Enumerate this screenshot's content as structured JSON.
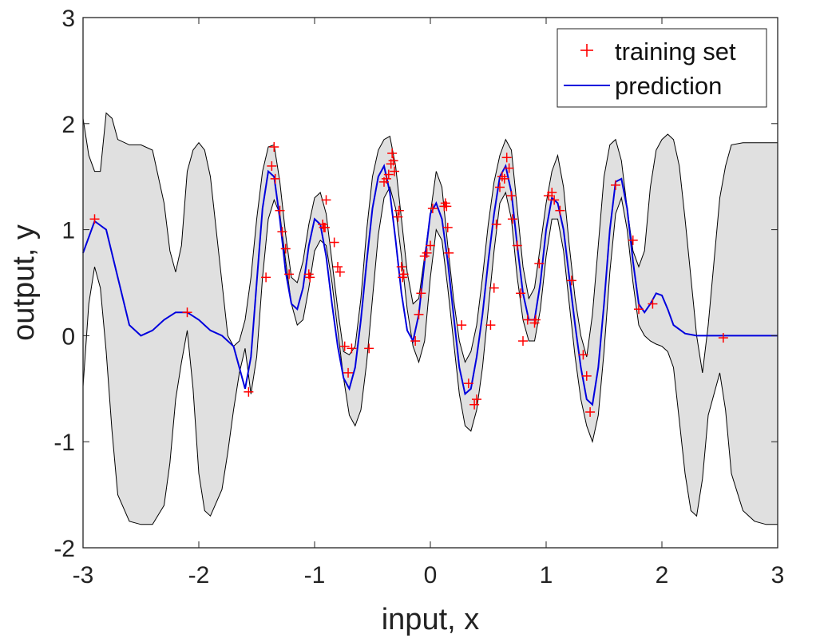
{
  "chart_data": {
    "type": "line",
    "xlabel": "input, x",
    "ylabel": "output, y",
    "xlim": [
      -3,
      3
    ],
    "ylim": [
      -2,
      3
    ],
    "xticks": [
      -3,
      -2,
      -1,
      0,
      1,
      2,
      3
    ],
    "xtick_labels": [
      "-3",
      "-2",
      "-1",
      "0",
      "1",
      "2",
      "3"
    ],
    "yticks": [
      -2,
      -1,
      0,
      1,
      2,
      3
    ],
    "ytick_labels": [
      "-2",
      "-1",
      "0",
      "1",
      "2",
      "3"
    ],
    "grid": false,
    "legend_position": "top-right",
    "legend": [
      {
        "label": "training set",
        "marker": "plus",
        "color": "#ff0000"
      },
      {
        "label": "prediction",
        "marker": "line",
        "color": "#0000dd"
      }
    ],
    "band_color": "#e0e0e0",
    "band_edge_color": "#000000",
    "series": [
      {
        "name": "prediction",
        "role": "mean",
        "color": "#0000dd",
        "x": [
          -3.0,
          -2.9,
          -2.8,
          -2.7,
          -2.6,
          -2.5,
          -2.4,
          -2.3,
          -2.2,
          -2.1,
          -2.0,
          -1.9,
          -1.8,
          -1.7,
          -1.6,
          -1.55,
          -1.5,
          -1.45,
          -1.4,
          -1.35,
          -1.3,
          -1.25,
          -1.2,
          -1.15,
          -1.1,
          -1.05,
          -1.0,
          -0.95,
          -0.9,
          -0.85,
          -0.8,
          -0.75,
          -0.7,
          -0.65,
          -0.6,
          -0.55,
          -0.5,
          -0.45,
          -0.4,
          -0.35,
          -0.3,
          -0.25,
          -0.2,
          -0.15,
          -0.1,
          -0.05,
          0.0,
          0.05,
          0.1,
          0.15,
          0.2,
          0.25,
          0.3,
          0.35,
          0.4,
          0.45,
          0.5,
          0.55,
          0.6,
          0.65,
          0.7,
          0.75,
          0.8,
          0.85,
          0.9,
          0.95,
          1.0,
          1.05,
          1.1,
          1.15,
          1.2,
          1.25,
          1.3,
          1.35,
          1.4,
          1.45,
          1.5,
          1.55,
          1.6,
          1.65,
          1.7,
          1.75,
          1.8,
          1.85,
          1.9,
          1.95,
          2.0,
          2.05,
          2.1,
          2.2,
          2.3,
          2.4,
          2.5,
          2.6,
          2.8,
          3.0
        ],
        "y": [
          0.78,
          1.08,
          1.0,
          0.55,
          0.1,
          0.0,
          0.05,
          0.15,
          0.22,
          0.22,
          0.15,
          0.05,
          0.0,
          -0.1,
          -0.5,
          -0.2,
          0.5,
          1.2,
          1.55,
          1.5,
          1.1,
          0.6,
          0.3,
          0.25,
          0.45,
          0.85,
          1.1,
          1.05,
          0.75,
          0.3,
          -0.1,
          -0.4,
          -0.5,
          -0.3,
          0.15,
          0.7,
          1.2,
          1.5,
          1.6,
          1.35,
          0.9,
          0.4,
          0.05,
          -0.05,
          0.2,
          0.7,
          1.15,
          1.25,
          1.1,
          0.7,
          0.2,
          -0.3,
          -0.55,
          -0.5,
          -0.2,
          0.2,
          0.7,
          1.15,
          1.5,
          1.6,
          1.35,
          0.85,
          0.4,
          0.15,
          0.15,
          0.5,
          1.0,
          1.3,
          1.25,
          1.0,
          0.55,
          0.1,
          -0.3,
          -0.6,
          -0.65,
          -0.3,
          0.3,
          1.0,
          1.45,
          1.48,
          1.2,
          0.7,
          0.3,
          0.22,
          0.3,
          0.4,
          0.38,
          0.25,
          0.1,
          0.02,
          0.0,
          0.0,
          0.0,
          0.0,
          0.0,
          0.0
        ]
      },
      {
        "name": "training set",
        "role": "points",
        "color": "#ff0000",
        "x": [
          -2.9,
          -2.1,
          -1.57,
          -1.42,
          -1.37,
          -1.35,
          -1.34,
          -1.3,
          -1.28,
          -1.25,
          -1.22,
          -1.05,
          -1.04,
          -0.93,
          -0.92,
          -0.91,
          -0.9,
          -0.83,
          -0.8,
          -0.78,
          -0.74,
          -0.71,
          -0.68,
          -0.53,
          -0.4,
          -0.38,
          -0.36,
          -0.34,
          -0.33,
          -0.32,
          -0.31,
          -0.28,
          -0.27,
          -0.25,
          -0.24,
          -0.23,
          -0.13,
          -0.1,
          -0.08,
          -0.05,
          -0.03,
          0.0,
          0.02,
          0.12,
          0.13,
          0.14,
          0.15,
          0.16,
          0.27,
          0.33,
          0.38,
          0.4,
          0.52,
          0.55,
          0.57,
          0.6,
          0.62,
          0.64,
          0.66,
          0.68,
          0.7,
          0.71,
          0.75,
          0.78,
          0.8,
          0.84,
          0.9,
          0.91,
          0.94,
          1.02,
          1.05,
          1.07,
          1.12,
          1.22,
          1.32,
          1.35,
          1.38,
          1.6,
          1.75,
          1.8,
          1.92,
          2.53
        ],
        "y": [
          1.1,
          0.22,
          -0.53,
          0.55,
          1.6,
          1.78,
          1.48,
          1.18,
          0.98,
          0.82,
          0.58,
          0.58,
          0.55,
          1.05,
          1.02,
          1.02,
          1.28,
          0.88,
          0.65,
          0.6,
          -0.1,
          -0.35,
          -0.12,
          -0.12,
          1.45,
          1.48,
          1.52,
          1.62,
          1.72,
          1.65,
          1.55,
          1.12,
          1.18,
          0.65,
          0.55,
          0.58,
          -0.05,
          0.2,
          0.4,
          0.75,
          0.78,
          0.85,
          1.2,
          1.22,
          1.25,
          1.22,
          1.02,
          0.78,
          0.1,
          -0.45,
          -0.65,
          -0.6,
          0.1,
          0.45,
          1.05,
          1.4,
          1.5,
          1.48,
          1.68,
          1.58,
          1.32,
          1.1,
          0.85,
          0.4,
          -0.05,
          0.15,
          0.12,
          0.15,
          0.68,
          1.32,
          1.35,
          1.28,
          1.18,
          0.52,
          -0.18,
          -0.38,
          -0.72,
          1.42,
          0.9,
          0.25,
          0.3,
          -0.02
        ]
      },
      {
        "name": "",
        "role": "upper-bound",
        "x": [
          -3.0,
          -2.95,
          -2.9,
          -2.85,
          -2.8,
          -2.75,
          -2.7,
          -2.6,
          -2.5,
          -2.4,
          -2.3,
          -2.25,
          -2.2,
          -2.15,
          -2.1,
          -2.05,
          -2.0,
          -1.95,
          -1.9,
          -1.8,
          -1.75,
          -1.7,
          -1.65,
          -1.6,
          -1.55,
          -1.5,
          -1.45,
          -1.4,
          -1.35,
          -1.3,
          -1.25,
          -1.2,
          -1.15,
          -1.1,
          -1.05,
          -1.0,
          -0.95,
          -0.9,
          -0.85,
          -0.8,
          -0.75,
          -0.7,
          -0.65,
          -0.6,
          -0.55,
          -0.5,
          -0.45,
          -0.4,
          -0.35,
          -0.3,
          -0.25,
          -0.2,
          -0.15,
          -0.1,
          -0.05,
          0.0,
          0.05,
          0.1,
          0.15,
          0.2,
          0.25,
          0.3,
          0.35,
          0.4,
          0.45,
          0.5,
          0.55,
          0.6,
          0.65,
          0.7,
          0.75,
          0.8,
          0.85,
          0.9,
          0.95,
          1.0,
          1.05,
          1.1,
          1.15,
          1.2,
          1.25,
          1.3,
          1.35,
          1.4,
          1.45,
          1.5,
          1.55,
          1.6,
          1.65,
          1.7,
          1.75,
          1.8,
          1.85,
          1.9,
          1.95,
          2.0,
          2.05,
          2.1,
          2.15,
          2.2,
          2.25,
          2.3,
          2.35,
          2.4,
          2.5,
          2.55,
          2.6,
          2.7,
          2.8,
          2.9,
          3.0
        ],
        "y": [
          2.05,
          1.7,
          1.55,
          1.55,
          2.1,
          2.05,
          1.85,
          1.8,
          1.8,
          1.75,
          1.25,
          0.8,
          0.6,
          0.85,
          1.55,
          1.75,
          1.82,
          1.75,
          1.5,
          0.5,
          0.0,
          -0.1,
          -0.05,
          0.15,
          0.55,
          1.1,
          1.55,
          1.78,
          1.8,
          1.45,
          0.95,
          0.55,
          0.5,
          0.7,
          1.05,
          1.3,
          1.35,
          1.15,
          0.7,
          0.25,
          -0.15,
          -0.18,
          -0.1,
          0.35,
          1.0,
          1.5,
          1.75,
          1.85,
          1.88,
          1.6,
          1.1,
          0.6,
          0.3,
          0.35,
          0.75,
          1.15,
          1.55,
          1.4,
          0.85,
          0.35,
          -0.05,
          -0.25,
          -0.15,
          0.1,
          0.55,
          1.05,
          1.45,
          1.7,
          1.85,
          1.75,
          1.2,
          0.65,
          0.35,
          0.45,
          0.85,
          1.25,
          1.55,
          1.7,
          1.4,
          0.85,
          0.35,
          0.0,
          -0.2,
          0.2,
          0.85,
          1.5,
          1.8,
          1.85,
          1.65,
          1.2,
          0.8,
          0.65,
          0.8,
          1.4,
          1.75,
          1.85,
          1.9,
          1.85,
          1.6,
          1.1,
          0.55,
          0.0,
          -0.35,
          0.1,
          1.3,
          1.6,
          1.8,
          1.82,
          1.82,
          1.82,
          1.82
        ]
      },
      {
        "name": "",
        "role": "lower-bound",
        "x": [
          -3.0,
          -2.95,
          -2.9,
          -2.85,
          -2.8,
          -2.75,
          -2.7,
          -2.6,
          -2.5,
          -2.4,
          -2.3,
          -2.25,
          -2.2,
          -2.15,
          -2.1,
          -2.05,
          -2.0,
          -1.95,
          -1.9,
          -1.8,
          -1.75,
          -1.7,
          -1.65,
          -1.6,
          -1.55,
          -1.5,
          -1.45,
          -1.4,
          -1.35,
          -1.3,
          -1.25,
          -1.2,
          -1.15,
          -1.1,
          -1.05,
          -1.0,
          -0.95,
          -0.9,
          -0.85,
          -0.8,
          -0.75,
          -0.7,
          -0.65,
          -0.6,
          -0.55,
          -0.5,
          -0.45,
          -0.4,
          -0.35,
          -0.3,
          -0.25,
          -0.2,
          -0.15,
          -0.1,
          -0.05,
          0.0,
          0.05,
          0.1,
          0.15,
          0.2,
          0.25,
          0.3,
          0.35,
          0.4,
          0.45,
          0.5,
          0.55,
          0.6,
          0.65,
          0.7,
          0.75,
          0.8,
          0.85,
          0.9,
          0.95,
          1.0,
          1.05,
          1.1,
          1.15,
          1.2,
          1.25,
          1.3,
          1.35,
          1.4,
          1.45,
          1.5,
          1.55,
          1.6,
          1.65,
          1.7,
          1.75,
          1.8,
          1.85,
          1.9,
          1.95,
          2.0,
          2.05,
          2.1,
          2.15,
          2.2,
          2.25,
          2.3,
          2.35,
          2.4,
          2.5,
          2.55,
          2.6,
          2.7,
          2.8,
          2.9,
          3.0
        ],
        "y": [
          -0.48,
          0.3,
          0.65,
          0.45,
          -0.15,
          -0.9,
          -1.5,
          -1.75,
          -1.78,
          -1.78,
          -1.6,
          -1.2,
          -0.6,
          -0.25,
          0.05,
          -0.5,
          -1.3,
          -1.65,
          -1.7,
          -1.45,
          -1.1,
          -0.7,
          -0.35,
          -0.12,
          -0.55,
          -0.2,
          0.55,
          1.1,
          1.28,
          1.15,
          0.7,
          0.3,
          0.1,
          0.15,
          0.45,
          0.8,
          0.9,
          0.85,
          0.5,
          0.05,
          -0.4,
          -0.75,
          -0.85,
          -0.7,
          -0.25,
          0.35,
          0.95,
          1.3,
          1.4,
          1.2,
          0.75,
          0.25,
          -0.1,
          -0.25,
          -0.05,
          0.55,
          1.0,
          0.9,
          0.45,
          -0.05,
          -0.55,
          -0.85,
          -0.9,
          -0.7,
          -0.3,
          0.25,
          0.8,
          1.25,
          1.35,
          1.1,
          0.55,
          0.15,
          -0.05,
          -0.05,
          0.25,
          0.75,
          1.1,
          1.1,
          0.8,
          0.3,
          -0.2,
          -0.6,
          -0.85,
          -1.0,
          -0.75,
          -0.15,
          0.6,
          1.15,
          1.3,
          1.0,
          0.5,
          0.1,
          0.0,
          -0.05,
          -0.08,
          -0.1,
          -0.15,
          -0.3,
          -0.8,
          -1.3,
          -1.65,
          -1.7,
          -1.35,
          -0.75,
          -0.35,
          -0.7,
          -1.3,
          -1.65,
          -1.75,
          -1.78,
          -1.78
        ]
      }
    ]
  }
}
